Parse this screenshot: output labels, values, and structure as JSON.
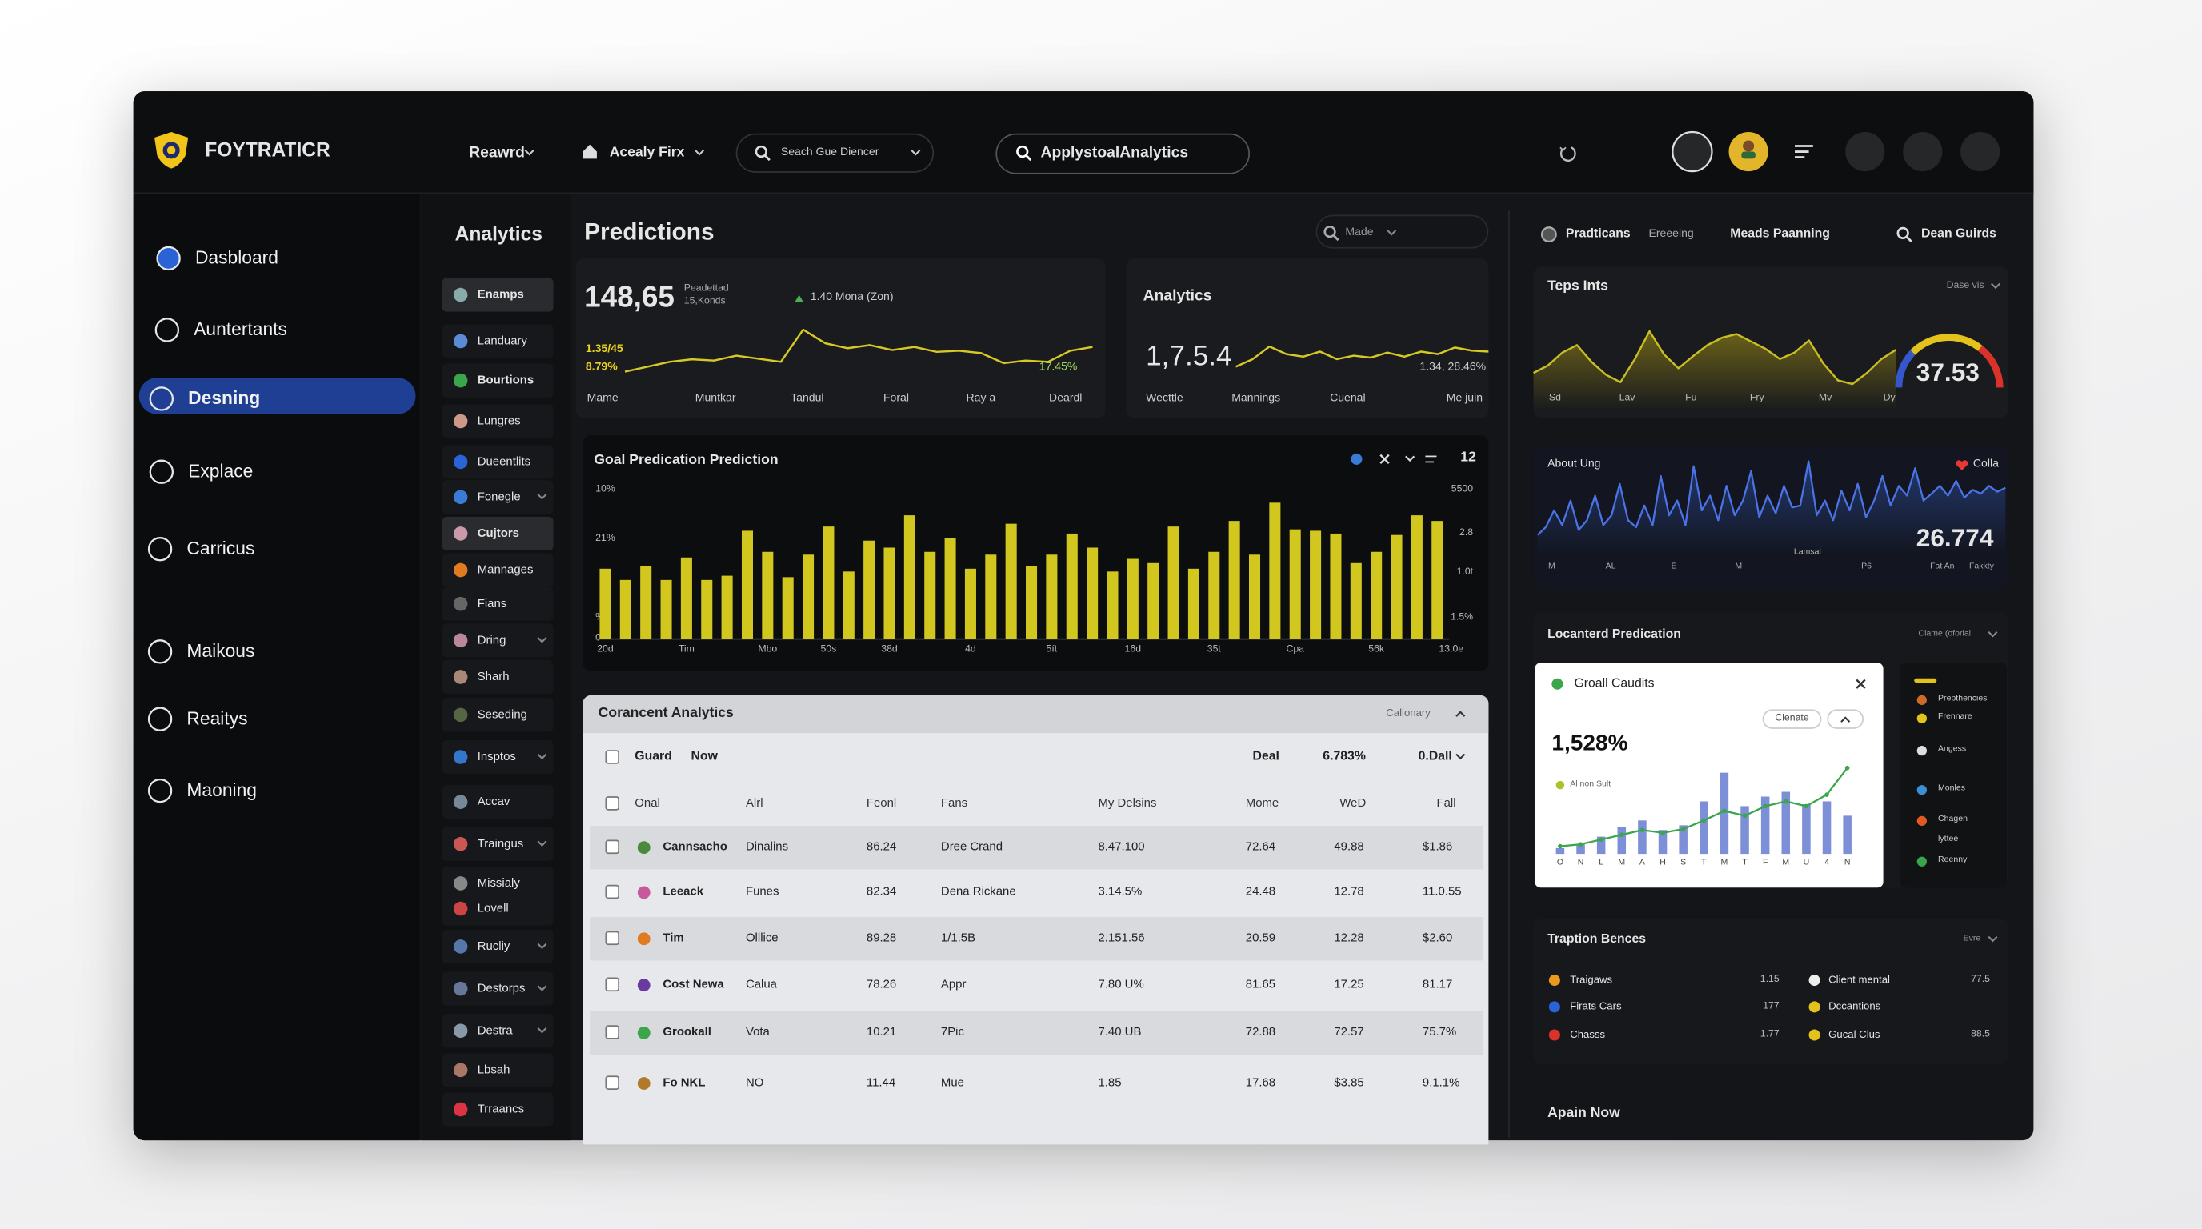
{
  "header": {
    "brand": "FOYTRATICR",
    "nav": [
      "Reawrd",
      "Acealy Firx"
    ],
    "search": "Seach Gue Diencer",
    "search_pill": "ApplystoalAnalytics"
  },
  "sidebar": {
    "items": [
      "Dasbloard",
      "Auntertants",
      "Desning",
      "Explace",
      "Carricus",
      "Maikous",
      "Reaitys",
      "Maoning"
    ]
  },
  "subnav": {
    "title": "Analytics",
    "items": [
      "Enamps",
      "Landuary",
      "Bourtions",
      "Lungres",
      "Dueentlits",
      "Fonegle",
      "Cujtors",
      "Mannages",
      "Fians",
      "Dring",
      "Sharh",
      "Seseding",
      "Insptos",
      "Accav",
      "Traingus",
      "Missialy",
      "Lovell",
      "Rucliy",
      "Destorps",
      "Destra",
      "Lbsah",
      "Trraancs"
    ]
  },
  "main": {
    "title": "Predictions",
    "filter": "Made",
    "summary": {
      "value": "148,65",
      "caption": [
        "Peadettad",
        "15,Konds"
      ],
      "delta": "1.40 Mona (Zon)",
      "left_labels": [
        "1.35/45",
        "8.79%"
      ],
      "right_label": "17.45%",
      "x_labels": [
        "Mame",
        "Muntkar",
        "Tandul",
        "Foral",
        "Ray a",
        "Deardl"
      ],
      "values": [
        12,
        20,
        28,
        32,
        30,
        38,
        33,
        28,
        80,
        58,
        50,
        55,
        47,
        52,
        44,
        46,
        42,
        26,
        30,
        28,
        46,
        52
      ]
    },
    "analytics": {
      "title": "Analytics",
      "value": "1,7.5.4",
      "label": "1.34, 28.46%",
      "x_labels": [
        "Wecttle",
        "Mannings",
        "Cuenal",
        "Me juin"
      ],
      "values": [
        30,
        45,
        70,
        55,
        50,
        60,
        45,
        52,
        48,
        58,
        50,
        60,
        55,
        68,
        62,
        60
      ]
    }
  },
  "chart_data": {
    "type": "bar",
    "title": "Goal Predication Prediction",
    "badge": 12,
    "color": "#d2c71f",
    "ylim": [
      0,
      100
    ],
    "left_labels": [
      "10%",
      "21%",
      "%",
      0
    ],
    "right_labels": [
      5500,
      "2.8",
      "1.0t",
      "1.5%"
    ],
    "categories": [
      "20d",
      null,
      null,
      null,
      "Tim",
      null,
      null,
      null,
      "Mbo",
      null,
      null,
      "50s",
      null,
      null,
      "38d",
      null,
      null,
      null,
      "4d",
      null,
      null,
      null,
      "5ít",
      null,
      null,
      null,
      "16d",
      null,
      null,
      null,
      "35t",
      null,
      null,
      null,
      "Cpa",
      null,
      null,
      null,
      "56k",
      null,
      null,
      "13.0e"
    ],
    "values": [
      50,
      42,
      52,
      42,
      58,
      42,
      45,
      77,
      62,
      44,
      60,
      80,
      48,
      70,
      65,
      88,
      62,
      72,
      50,
      60,
      82,
      52,
      60,
      75,
      65,
      48,
      57,
      54,
      80,
      50,
      62,
      84,
      60,
      97,
      78,
      77,
      75,
      54,
      62,
      74,
      88,
      84
    ]
  },
  "table": {
    "title": "Corancent Analytics",
    "filter": "Callonary",
    "summary_row": [
      "Guard",
      "Now",
      "Deal",
      "6.783%",
      "0.Dall"
    ],
    "columns": [
      "Onal",
      "Alrl",
      "Feonl",
      "Fans",
      "My Delsins",
      "Mome",
      "WeD",
      "Fall"
    ],
    "rows": [
      [
        "Cannsacho",
        "Dinalins",
        86.24,
        "Dree Crand",
        "8.47.100",
        72.64,
        49.88,
        "$1.86"
      ],
      [
        "Leeack",
        "Funes",
        82.34,
        "Dena Rickane",
        "3.14.5%",
        24.48,
        12.78,
        "11.0.55"
      ],
      [
        "Tim",
        "Olllice",
        89.28,
        "1/1.5B",
        "2.151.56",
        20.59,
        12.28,
        "$2.60"
      ],
      [
        "Cost Newa",
        "Calua",
        78.26,
        "Appr",
        "7.80 U%",
        81.65,
        17.25,
        81.17
      ],
      [
        "Grookall",
        "Vota",
        10.21,
        "7Pic",
        "7.40.UB",
        72.88,
        72.57,
        "75.7%"
      ],
      [
        "Fo NKL",
        "NO",
        11.44,
        "Mue",
        1.85,
        17.68,
        "$3.85",
        "9.1.1%"
      ]
    ]
  },
  "right": {
    "tabs": [
      "Pradticans",
      "Ereeeing",
      "Meads Paanning",
      "Dean Guirds"
    ],
    "trend": {
      "title": "Teps Ints",
      "filter": "Dase vis",
      "value": 37.53,
      "x_labels": [
        "Sd",
        "Lav",
        "Fu",
        "Fry",
        "Mv",
        "Dy"
      ],
      "values": [
        40,
        48,
        62,
        70,
        52,
        38,
        30,
        55,
        85,
        60,
        45,
        58,
        70,
        78,
        82,
        74,
        66,
        55,
        62,
        75,
        50,
        32,
        28,
        40,
        55,
        65
      ]
    },
    "wave": {
      "title": "About Ung",
      "tag": "Colla",
      "value": 26.774,
      "note": "Lamsal",
      "x_labels": [
        "M",
        "AL",
        "E",
        "M",
        "P6"
      ],
      "footer": [
        "Fat An",
        "Fakkty"
      ],
      "values": [
        20,
        28,
        45,
        30,
        55,
        25,
        35,
        60,
        30,
        40,
        72,
        35,
        28,
        50,
        30,
        80,
        40,
        55,
        30,
        90,
        45,
        60,
        35,
        70,
        40,
        55,
        85,
        38,
        60,
        42,
        70,
        48,
        50,
        95,
        40,
        55,
        35,
        65,
        45,
        72,
        38,
        55,
        80,
        50,
        70,
        60,
        88,
        55,
        62,
        70,
        60,
        75,
        58,
        66,
        62,
        70,
        64,
        68
      ]
    },
    "location": {
      "title": "Locanterd Predication",
      "filter": "Clame (oforlal",
      "card": {
        "title": "Groall Caudits",
        "button": "Clenate",
        "value": "1,528%",
        "legend": "Al non Sult",
        "categories": [
          "O",
          "N",
          "L",
          "M",
          "A",
          "H",
          "S",
          "T",
          "M",
          "T",
          "F",
          "M",
          "U",
          "4",
          "N"
        ],
        "bars": [
          6,
          10,
          18,
          28,
          35,
          25,
          30,
          55,
          85,
          50,
          60,
          65,
          52,
          55,
          40
        ],
        "line": [
          8,
          10,
          15,
          20,
          25,
          22,
          26,
          35,
          45,
          40,
          50,
          55,
          50,
          62,
          90
        ]
      },
      "list": [
        "Prepthencies",
        "Frennare",
        "Angess",
        "Monles",
        "Chagen",
        "lyttee",
        "Reenny"
      ]
    },
    "benches": {
      "title": "Traption Bences",
      "filter": "Evre",
      "left": [
        {
          "name": "Traigaws",
          "value": 1.15
        },
        {
          "name": "Firats Cars",
          "value": 177
        },
        {
          "name": "Chasss",
          "value": 1.77
        }
      ],
      "right": [
        {
          "name": "Client mental",
          "value": 77.5
        },
        {
          "name": "Dccantions"
        },
        {
          "name": "Gucal Clus",
          "value": 88.5
        }
      ]
    },
    "footer": "Apain Now"
  }
}
